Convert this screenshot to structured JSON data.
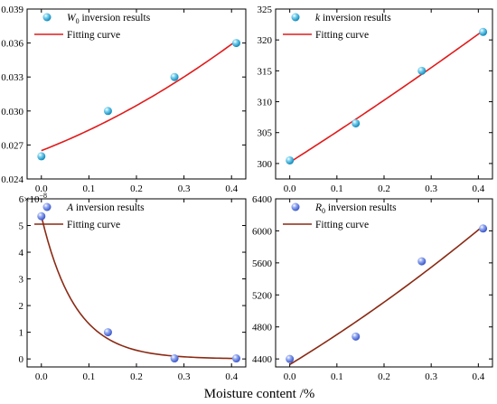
{
  "xlabel": "Moisture content /%",
  "chart_data": [
    {
      "type": "scatter",
      "legend": {
        "points": {
          "symbol": "W",
          "subscript": "0",
          "label": " inversion results"
        },
        "curve": {
          "label": "Fitting curve"
        }
      },
      "points": {
        "x": [
          0,
          0.14,
          0.28,
          0.41
        ],
        "y": [
          0.026,
          0.03,
          0.033,
          0.036
        ]
      },
      "fit": {
        "x": [
          0,
          0.41
        ],
        "y": [
          0.0265,
          0.0362
        ],
        "shape": "quadratic",
        "mid_y": 0.0306
      },
      "xlim": [
        -0.03,
        0.43
      ],
      "ylim": [
        0.024,
        0.039
      ],
      "xticks": [
        0,
        0.1,
        0.2,
        0.3,
        0.4
      ],
      "xtick_labels": [
        "0.0",
        "0.1",
        "0.2",
        "0.3",
        "0.4"
      ],
      "yticks": [
        0.024,
        0.027,
        0.03,
        0.033,
        0.036,
        0.039
      ],
      "ytick_labels": [
        "0.024",
        "0.027",
        "0.030",
        "0.033",
        "0.036",
        "0.039"
      ],
      "point_color": "#1fa5d4",
      "curve_color": "#e01b1b"
    },
    {
      "type": "scatter",
      "legend": {
        "points": {
          "symbol": "k",
          "subscript": "",
          "label": " inversion results"
        },
        "curve": {
          "label": "Fitting curve"
        }
      },
      "points": {
        "x": [
          0,
          0.14,
          0.28,
          0.41
        ],
        "y": [
          300.5,
          306.5,
          315,
          321.3
        ]
      },
      "fit": {
        "x": [
          0,
          0.41
        ],
        "y": [
          300.2,
          321.5
        ],
        "shape": "quadratic",
        "mid_y": 310.5
      },
      "xlim": [
        -0.03,
        0.43
      ],
      "ylim": [
        297.5,
        325
      ],
      "xticks": [
        0,
        0.1,
        0.2,
        0.3,
        0.4
      ],
      "xtick_labels": [
        "0.0",
        "0.1",
        "0.2",
        "0.3",
        "0.4"
      ],
      "yticks": [
        300,
        305,
        310,
        315,
        320,
        325
      ],
      "ytick_labels": [
        "300",
        "305",
        "310",
        "315",
        "320",
        "325"
      ],
      "point_color": "#1fa5d4",
      "curve_color": "#e01b1b"
    },
    {
      "type": "scatter",
      "legend": {
        "points": {
          "symbol": "A",
          "subscript": "",
          "label": " inversion results"
        },
        "curve": {
          "label": "Fitting curve"
        }
      },
      "points": {
        "x": [
          0,
          0.14,
          0.28,
          0.41
        ],
        "y": [
          5.35,
          1.0,
          0.02,
          0.02
        ]
      },
      "fit": {
        "shape": "exponential",
        "a": 5.35,
        "rate": 14.0,
        "offset": 0.0
      },
      "xlim": [
        -0.03,
        0.43
      ],
      "ylim": [
        -0.3,
        6
      ],
      "xticks": [
        0,
        0.1,
        0.2,
        0.3,
        0.4
      ],
      "xtick_labels": [
        "0.0",
        "0.1",
        "0.2",
        "0.3",
        "0.4"
      ],
      "yticks": [
        0,
        1,
        2,
        3,
        4,
        5,
        6
      ],
      "ytick_labels": [
        "0",
        "1",
        "2",
        "3",
        "4",
        "5",
        "6×10"
      ],
      "y_exponent": "−8",
      "point_color": "#4d6fe0",
      "curve_color": "#8a2a14"
    },
    {
      "type": "scatter",
      "legend": {
        "points": {
          "symbol": "R",
          "subscript": "0",
          "label": " inversion results"
        },
        "curve": {
          "label": "Fitting curve"
        }
      },
      "points": {
        "x": [
          0,
          0.14,
          0.28,
          0.41
        ],
        "y": [
          4400,
          4680,
          5620,
          6030
        ]
      },
      "fit": {
        "x": [
          0,
          0.41
        ],
        "y": [
          4330,
          6060
        ],
        "shape": "quadratic",
        "mid_y": 5130
      },
      "xlim": [
        -0.03,
        0.43
      ],
      "ylim": [
        4300,
        6400
      ],
      "xticks": [
        0,
        0.1,
        0.2,
        0.3,
        0.4
      ],
      "xtick_labels": [
        "0.0",
        "0.1",
        "0.2",
        "0.3",
        "0.4"
      ],
      "yticks": [
        4400,
        4800,
        5200,
        5600,
        6000,
        6400
      ],
      "ytick_labels": [
        "4400",
        "4800",
        "5200",
        "5600",
        "6000",
        "6400"
      ],
      "point_color": "#4d6fe0",
      "curve_color": "#8a2a14"
    }
  ]
}
